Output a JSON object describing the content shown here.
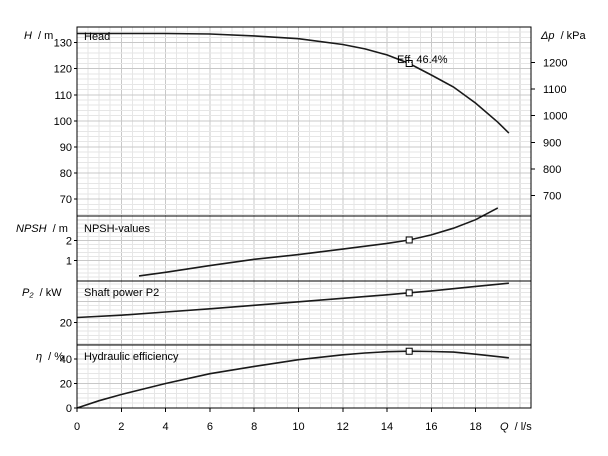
{
  "chart_data": {
    "type": "line",
    "x_axis": {
      "label_q": "Q",
      "label_unit": "/ l/s",
      "range": [
        0,
        20.5
      ],
      "ticks": [
        0,
        2,
        4,
        6,
        8,
        10,
        12,
        14,
        16,
        18
      ]
    },
    "operating_point_q": 15,
    "panels": [
      {
        "id": "head",
        "title": "Head",
        "ylabel_sym": "H",
        "ylabel_unit": "/ m",
        "ylim": [
          63.5,
          136
        ],
        "yticks": [
          70,
          80,
          90,
          100,
          110,
          120,
          130
        ],
        "right_axis": {
          "label_sym": "Δp",
          "label_unit": "/ kPa",
          "factor": 9.80665,
          "ticks": [
            700,
            800,
            900,
            1000,
            1100,
            1200
          ]
        },
        "annotation": "Eff.  46.4%",
        "series": [
          {
            "x": [
              0,
              2,
              4,
              6,
              8,
              10,
              12,
              13,
              14,
              15,
              16,
              17,
              18,
              19,
              19.5
            ],
            "y": [
              133.5,
              133.5,
              133.5,
              133.3,
              132.6,
              131.5,
              129.3,
              127.6,
              125.3,
              122.0,
              117.6,
              113.0,
              106.8,
              99.5,
              95.3
            ]
          }
        ],
        "marker": {
          "x": 15,
          "y": 122.0
        }
      },
      {
        "id": "npsh",
        "title": "NPSH-values",
        "ylabel_sym": "NPSH",
        "ylabel_unit": "/ m",
        "ylim": [
          0,
          3.2
        ],
        "yticks": [
          1,
          2
        ],
        "series": [
          {
            "x": [
              2.8,
              4,
              6,
              8,
              10,
              12,
              14,
              15,
              16,
              17,
              18,
              19
            ],
            "y": [
              0.25,
              0.43,
              0.76,
              1.07,
              1.3,
              1.57,
              1.85,
              2.02,
              2.27,
              2.6,
              3.02,
              3.6
            ]
          }
        ],
        "marker": {
          "x": 15,
          "y": 2.02
        }
      },
      {
        "id": "power",
        "title": "Shaft power P2",
        "ylabel_sym": "P₂",
        "ylabel_unit": "/ kW",
        "ylim": [
          13,
          33
        ],
        "yticks": [
          20
        ],
        "series": [
          {
            "x": [
              0,
              2,
              4,
              6,
              8,
              10,
              12,
              14,
              15,
              16,
              18,
              19.5
            ],
            "y": [
              21.6,
              22.3,
              23.3,
              24.3,
              25.4,
              26.5,
              27.6,
              28.7,
              29.3,
              29.9,
              31.3,
              32.3
            ]
          }
        ],
        "marker": {
          "x": 15,
          "y": 29.3
        }
      },
      {
        "id": "efficiency",
        "title": "Hydraulic efficiency",
        "ylabel_sym": "η",
        "ylabel_unit": "/ %",
        "ylim": [
          0,
          51.5
        ],
        "yticks": [
          0,
          20,
          40
        ],
        "series": [
          {
            "x": [
              0,
              1,
              2,
              4,
              6,
              8,
              10,
              12,
              13,
              14,
              15,
              16,
              17,
              18,
              19.5
            ],
            "y": [
              0,
              6,
              11,
              20,
              28,
              34,
              39.5,
              43.5,
              45,
              46,
              46.4,
              46.2,
              45.7,
              44,
              41
            ]
          }
        ],
        "marker": {
          "x": 15,
          "y": 46.4
        }
      }
    ]
  }
}
